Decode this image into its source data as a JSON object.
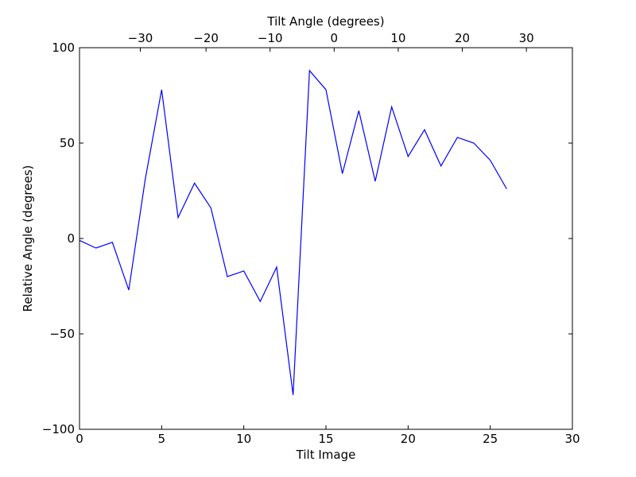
{
  "chart_data": {
    "type": "line",
    "xlabel": "Tilt Image",
    "ylabel": "Relative Angle (degrees)",
    "top_xlabel": "Tilt Angle (degrees)",
    "xlim": [
      0,
      30
    ],
    "ylim": [
      -100,
      100
    ],
    "xticks": [
      0,
      5,
      10,
      15,
      20,
      25,
      30
    ],
    "xtick_labels": [
      "0",
      "5",
      "10",
      "15",
      "20",
      "25",
      "30"
    ],
    "yticks": [
      -100,
      -50,
      0,
      50,
      100
    ],
    "ytick_labels": [
      "−100",
      "−50",
      "0",
      "50",
      "100"
    ],
    "top_xticks": [
      -30,
      -20,
      -10,
      0,
      10,
      20,
      30
    ],
    "top_xtick_labels": [
      "−30",
      "−20",
      "−10",
      "0",
      "10",
      "20",
      "30"
    ],
    "top_xtick_positions": [
      3.7,
      7.7,
      11.6,
      15.5,
      19.4,
      23.3,
      27.2
    ],
    "grid": false,
    "series": [
      {
        "color": "#0000ff",
        "x": [
          0,
          1,
          2,
          3,
          4,
          5,
          6,
          7,
          8,
          9,
          10,
          11,
          12,
          13,
          14,
          15,
          16,
          17,
          18,
          19,
          20,
          21,
          22,
          23,
          24,
          25,
          26
        ],
        "values": [
          -1,
          -5,
          -2,
          -27,
          31,
          78,
          11,
          29,
          16,
          -20,
          -17,
          -33,
          -15,
          -82,
          88,
          78,
          34,
          67,
          30,
          69,
          43,
          57,
          38,
          53,
          50,
          41,
          26
        ]
      }
    ]
  }
}
